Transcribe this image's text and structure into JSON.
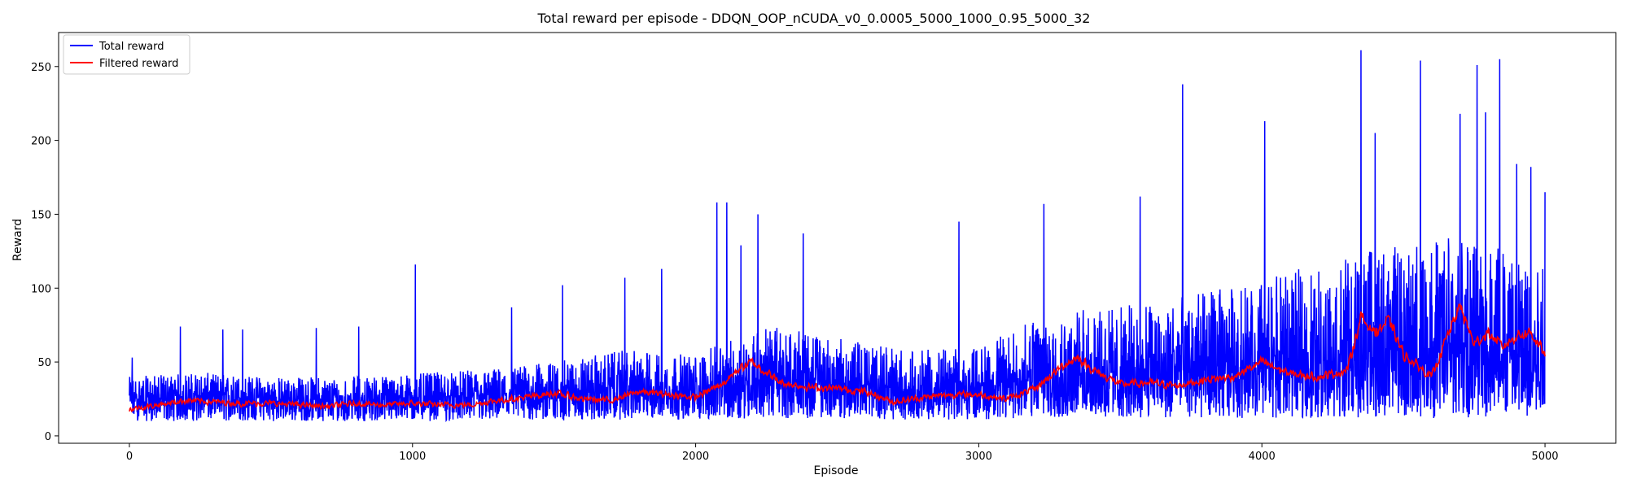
{
  "chart_data": {
    "type": "line",
    "title": "Total reward per episode - DDQN_OOP_nCUDA_v0_0.0005_5000_1000_0.95_5000_32",
    "xlabel": "Episode",
    "ylabel": "Reward",
    "xlim": [
      -250,
      5250
    ],
    "ylim": [
      -5,
      273
    ],
    "xticks": [
      0,
      1000,
      2000,
      3000,
      4000,
      5000
    ],
    "yticks": [
      0,
      50,
      100,
      150,
      200,
      250
    ],
    "grid": false,
    "legend": "top-left",
    "episodes": 5000,
    "series": [
      {
        "name": "Total reward",
        "color": "#0000ff",
        "x": [
          0,
          250,
          500,
          750,
          1000,
          1250,
          1500,
          1750,
          2000,
          2250,
          2500,
          2750,
          3000,
          3250,
          3500,
          3750,
          4000,
          4250,
          4500,
          4750,
          5000
        ],
        "y": [
          25,
          27,
          25,
          24,
          26,
          27,
          30,
          33,
          30,
          40,
          36,
          31,
          33,
          43,
          42,
          46,
          47,
          55,
          58,
          60,
          55
        ],
        "band_low": [
          10,
          10,
          10,
          10,
          10,
          10,
          10,
          11,
          11,
          12,
          12,
          11,
          11,
          12,
          12,
          12,
          12,
          12,
          12,
          12,
          12
        ],
        "band_high": [
          40,
          43,
          40,
          40,
          42,
          45,
          50,
          58,
          55,
          75,
          66,
          58,
          60,
          84,
          88,
          96,
          105,
          120,
          130,
          140,
          125
        ],
        "spikes": [
          {
            "x": 10,
            "y": 53
          },
          {
            "x": 180,
            "y": 74
          },
          {
            "x": 330,
            "y": 72
          },
          {
            "x": 400,
            "y": 72
          },
          {
            "x": 660,
            "y": 73
          },
          {
            "x": 810,
            "y": 74
          },
          {
            "x": 1010,
            "y": 116
          },
          {
            "x": 1350,
            "y": 87
          },
          {
            "x": 1530,
            "y": 102
          },
          {
            "x": 1750,
            "y": 107
          },
          {
            "x": 1880,
            "y": 113
          },
          {
            "x": 2075,
            "y": 158
          },
          {
            "x": 2110,
            "y": 158
          },
          {
            "x": 2160,
            "y": 129
          },
          {
            "x": 2220,
            "y": 150
          },
          {
            "x": 2380,
            "y": 137
          },
          {
            "x": 2930,
            "y": 145
          },
          {
            "x": 3230,
            "y": 157
          },
          {
            "x": 3570,
            "y": 162
          },
          {
            "x": 3720,
            "y": 238
          },
          {
            "x": 4010,
            "y": 213
          },
          {
            "x": 4350,
            "y": 261
          },
          {
            "x": 4400,
            "y": 205
          },
          {
            "x": 4560,
            "y": 254
          },
          {
            "x": 4700,
            "y": 218
          },
          {
            "x": 4760,
            "y": 251
          },
          {
            "x": 4790,
            "y": 219
          },
          {
            "x": 4840,
            "y": 255
          },
          {
            "x": 4900,
            "y": 184
          },
          {
            "x": 4950,
            "y": 182
          },
          {
            "x": 5000,
            "y": 165
          }
        ]
      },
      {
        "name": "Filtered reward",
        "color": "#ff0000",
        "x": [
          0,
          100,
          200,
          300,
          400,
          500,
          600,
          700,
          800,
          900,
          1000,
          1100,
          1200,
          1300,
          1400,
          1500,
          1600,
          1700,
          1800,
          1900,
          2000,
          2100,
          2150,
          2200,
          2300,
          2400,
          2500,
          2600,
          2700,
          2800,
          2900,
          3000,
          3100,
          3200,
          3300,
          3350,
          3400,
          3500,
          3600,
          3700,
          3800,
          3900,
          4000,
          4100,
          4200,
          4300,
          4350,
          4400,
          4450,
          4500,
          4600,
          4650,
          4700,
          4750,
          4800,
          4850,
          4900,
          4950,
          5000
        ],
        "y": [
          18,
          21,
          24,
          23,
          22,
          22,
          21,
          20,
          22,
          21,
          22,
          21,
          21,
          24,
          26,
          29,
          25,
          24,
          30,
          28,
          26,
          36,
          45,
          50,
          36,
          33,
          32,
          30,
          23,
          26,
          28,
          28,
          25,
          32,
          48,
          53,
          45,
          35,
          36,
          34,
          38,
          40,
          50,
          42,
          40,
          44,
          80,
          70,
          78,
          55,
          40,
          65,
          88,
          62,
          70,
          60,
          68,
          70,
          55
        ]
      }
    ]
  }
}
